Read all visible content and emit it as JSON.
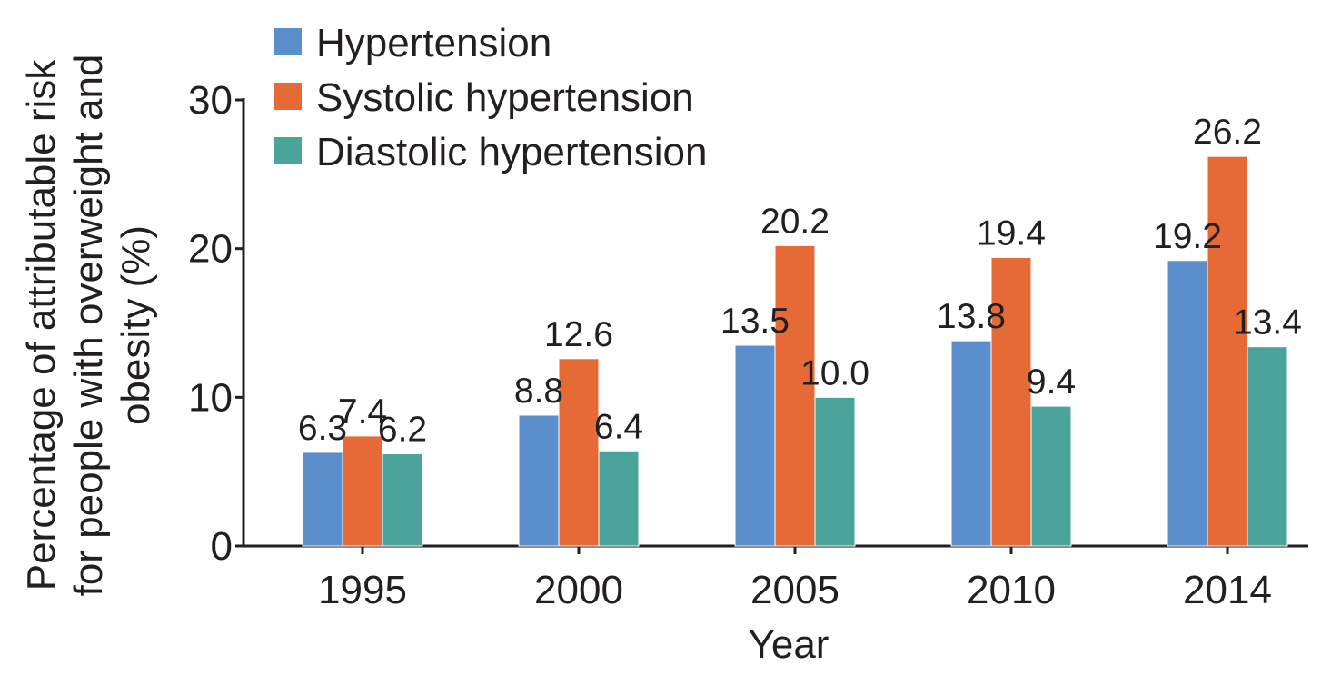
{
  "chart_data": {
    "type": "bar",
    "categories": [
      "1995",
      "2000",
      "2005",
      "2010",
      "2014"
    ],
    "series": [
      {
        "name": "Hypertension",
        "color": "#5b8fcb",
        "values": [
          6.3,
          8.8,
          13.5,
          13.8,
          19.2
        ],
        "labels": [
          "6.3",
          "8.8",
          "13.5",
          "13.8",
          "19.2"
        ]
      },
      {
        "name": "Systolic hypertension",
        "color": "#e56a35",
        "values": [
          7.4,
          12.6,
          20.2,
          19.4,
          26.2
        ],
        "labels": [
          "7.4",
          "12.6",
          "20.2",
          "19.4",
          "26.2"
        ]
      },
      {
        "name": "Diastolic hypertension",
        "color": "#4aa49b",
        "values": [
          6.2,
          6.4,
          10.0,
          9.4,
          13.4
        ],
        "labels": [
          "6.2",
          "6.4",
          "10.0",
          "9.4",
          "13.4"
        ]
      }
    ],
    "xlabel": "Year",
    "ylabel_lines": [
      "Percentage of attributable risk",
      "for people with overweight and",
      "obesity (%)"
    ],
    "ylim": [
      0,
      30
    ],
    "yticks": [
      0,
      10,
      20,
      30
    ],
    "ytick_labels": [
      "0",
      "10",
      "20",
      "30"
    ],
    "grid": false,
    "legend_position": "top-left"
  }
}
